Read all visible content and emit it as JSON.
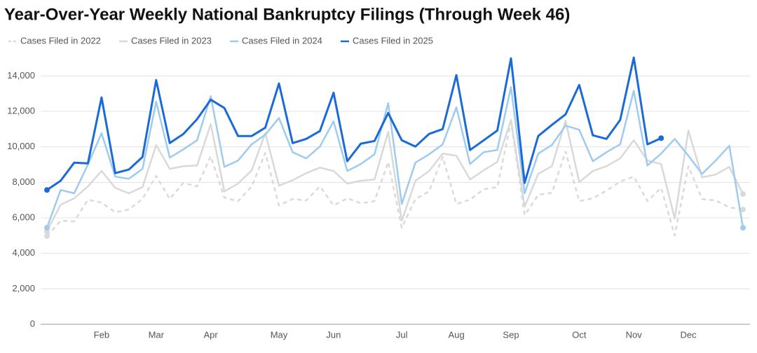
{
  "chart_data": {
    "type": "line",
    "title": "Year-Over-Year Weekly National Bankruptcy Filings (Through Week 46)",
    "categories": [
      null,
      null,
      null,
      null,
      "Feb",
      null,
      null,
      null,
      "Mar",
      null,
      null,
      null,
      "Apr",
      null,
      null,
      null,
      null,
      "May",
      null,
      null,
      null,
      "Jun",
      null,
      null,
      null,
      null,
      "Jul",
      null,
      null,
      null,
      "Aug",
      null,
      null,
      null,
      "Sep",
      null,
      null,
      null,
      null,
      "Oct",
      null,
      null,
      null,
      "Nov",
      null,
      null,
      null,
      "Dec",
      null,
      null,
      null,
      null
    ],
    "series": [
      {
        "name": "Cases Filed in 2022",
        "color": "#dadada",
        "dashed": true,
        "values": [
          4970,
          5840,
          5800,
          7020,
          6860,
          6310,
          6470,
          7060,
          8360,
          7060,
          7970,
          7770,
          9470,
          7140,
          6940,
          7770,
          9660,
          6700,
          7060,
          6980,
          7770,
          6700,
          7100,
          6820,
          6940,
          9150,
          5440,
          7060,
          7490,
          9430,
          6780,
          7020,
          7610,
          7730,
          11400,
          6150,
          7300,
          7410,
          9740,
          6940,
          7100,
          7530,
          8050,
          8320,
          6940,
          7690,
          5010,
          8910,
          7060,
          6980,
          6590,
          6470
        ]
      },
      {
        "name": "Cases Filed in 2023",
        "color": "#d9d9d9",
        "values": [
          5250,
          6740,
          7100,
          7770,
          8640,
          7690,
          7380,
          7730,
          10100,
          8760,
          8910,
          8950,
          11280,
          7490,
          7930,
          8680,
          10770,
          7810,
          8120,
          8520,
          8830,
          8640,
          7930,
          8090,
          8160,
          10850,
          5840,
          8090,
          8640,
          9620,
          9500,
          8160,
          8680,
          9150,
          11520,
          6630,
          8480,
          8910,
          11480,
          8010,
          8640,
          8910,
          9350,
          10370,
          9230,
          9030,
          5960,
          10920,
          8280,
          8440,
          8870,
          7340
        ]
      },
      {
        "name": "Cases Filed in 2024",
        "color": "#9fcbf0",
        "values": [
          5440,
          7570,
          7380,
          9000,
          10770,
          8320,
          8200,
          8760,
          12540,
          9390,
          9860,
          10370,
          12860,
          8870,
          9230,
          10140,
          10690,
          11630,
          9700,
          9350,
          10020,
          11440,
          8640,
          9030,
          9580,
          12460,
          6780,
          9110,
          9580,
          10140,
          12230,
          9030,
          9700,
          9820,
          13370,
          7380,
          9620,
          10100,
          11200,
          10960,
          9190,
          9700,
          10140,
          13170,
          8950,
          9620,
          10450,
          9500,
          8480,
          9230,
          10060,
          5440
        ]
      },
      {
        "name": "Cases Filed in 2025",
        "color": "#1a6ad8",
        "values": [
          7570,
          8090,
          9110,
          9070,
          12780,
          8520,
          8720,
          9430,
          13760,
          10210,
          10730,
          11560,
          12660,
          12190,
          10610,
          10610,
          11080,
          13570,
          10210,
          10450,
          10890,
          13050,
          9190,
          10180,
          10330,
          11910,
          10370,
          10020,
          10730,
          11000,
          14040,
          9820,
          10370,
          10920,
          14990,
          7970,
          10610,
          11240,
          11830,
          13490,
          10650,
          10450,
          11520,
          15030,
          10140,
          10490,
          null,
          null,
          null,
          null,
          null,
          null
        ]
      }
    ],
    "ylim": [
      0,
      15000
    ],
    "yticks": [
      0,
      {
        "value": 2000,
        "label": "2,000"
      },
      {
        "value": 4000,
        "label": "4,000"
      },
      {
        "value": 6000,
        "label": "6,000"
      },
      {
        "value": 8000,
        "label": "8,000"
      },
      {
        "value": 10000,
        "label": "10,000"
      },
      {
        "value": 12000,
        "label": "12,000"
      },
      {
        "value": 14000,
        "label": "14,000"
      }
    ],
    "grid": true
  }
}
